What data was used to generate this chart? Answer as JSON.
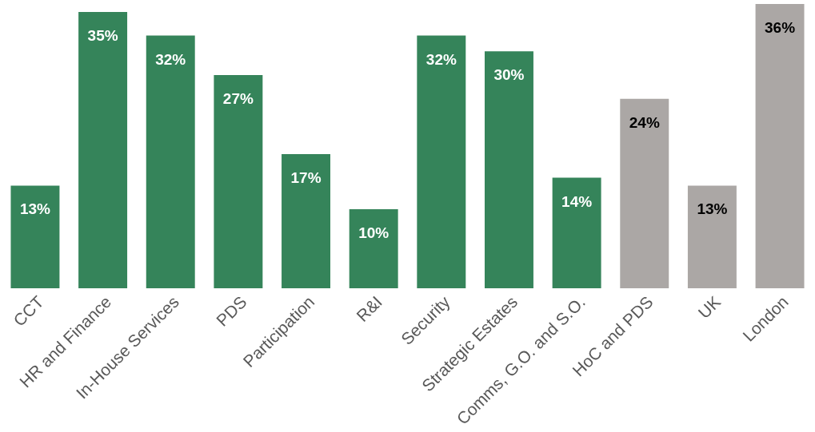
{
  "chart_data": {
    "type": "bar",
    "categories": [
      "CCT",
      "HR and Finance",
      "In-House Services",
      "PDS",
      "Participation",
      "R&I",
      "Security",
      "Strategic Estates",
      "Comms, G.O. and S.O.",
      "HoC and PDS",
      "UK",
      "London"
    ],
    "values": [
      13,
      35,
      32,
      27,
      17,
      10,
      32,
      30,
      14,
      24,
      13,
      36
    ],
    "value_labels": [
      "13%",
      "35%",
      "32%",
      "27%",
      "17%",
      "10%",
      "32%",
      "30%",
      "14%",
      "24%",
      "13%",
      "36%"
    ],
    "colors": [
      "#35845a",
      "#35845a",
      "#35845a",
      "#35845a",
      "#35845a",
      "#35845a",
      "#35845a",
      "#35845a",
      "#35845a",
      "#aba7a5",
      "#aba7a5",
      "#aba7a5"
    ],
    "grid": false
  }
}
